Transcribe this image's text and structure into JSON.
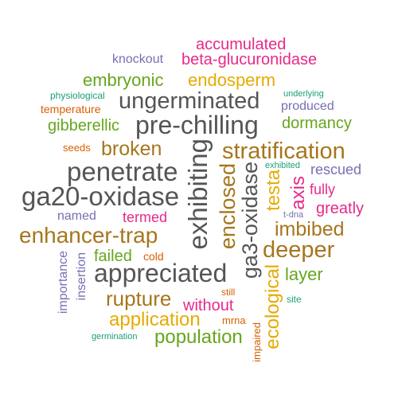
{
  "words": [
    {
      "text": "accumulated",
      "color": "#e7298a"
    },
    {
      "text": "knockout",
      "color": "#7570b3"
    },
    {
      "text": "beta-glucuronidase",
      "color": "#e7298a"
    },
    {
      "text": "embryonic",
      "color": "#66a61e"
    },
    {
      "text": "endosperm",
      "color": "#e6ab02"
    },
    {
      "text": "physiological",
      "color": "#1b9e77"
    },
    {
      "text": "underlying",
      "color": "#1b9e77"
    },
    {
      "text": "temperature",
      "color": "#d95f02"
    },
    {
      "text": "ungerminated",
      "color": "#555555"
    },
    {
      "text": "produced",
      "color": "#7570b3"
    },
    {
      "text": "gibberellic",
      "color": "#66a61e"
    },
    {
      "text": "pre-chilling",
      "color": "#555555"
    },
    {
      "text": "dormancy",
      "color": "#66a61e"
    },
    {
      "text": "seeds",
      "color": "#d95f02"
    },
    {
      "text": "broken",
      "color": "#a6761d"
    },
    {
      "text": "stratification",
      "color": "#a6761d"
    },
    {
      "text": "exhibited",
      "color": "#1b9e77"
    },
    {
      "text": "rescued",
      "color": "#7570b3"
    },
    {
      "text": "penetrate",
      "color": "#555555"
    },
    {
      "text": "fully",
      "color": "#e7298a"
    },
    {
      "text": "ga20-oxidase",
      "color": "#555555"
    },
    {
      "text": "t-dna",
      "color": "#7570b3"
    },
    {
      "text": "greatly",
      "color": "#e7298a"
    },
    {
      "text": "named",
      "color": "#7570b3"
    },
    {
      "text": "termed",
      "color": "#e7298a"
    },
    {
      "text": "enhancer-trap",
      "color": "#a6761d"
    },
    {
      "text": "imbibed",
      "color": "#a6761d"
    },
    {
      "text": "failed",
      "color": "#66a61e"
    },
    {
      "text": "cold",
      "color": "#d95f02"
    },
    {
      "text": "deeper",
      "color": "#a6761d"
    },
    {
      "text": "appreciated",
      "color": "#555555"
    },
    {
      "text": "layer",
      "color": "#66a61e"
    },
    {
      "text": "still",
      "color": "#d95f02"
    },
    {
      "text": "rupture",
      "color": "#a6761d"
    },
    {
      "text": "without",
      "color": "#e7298a"
    },
    {
      "text": "site",
      "color": "#1b9e77"
    },
    {
      "text": "application",
      "color": "#e6ab02"
    },
    {
      "text": "mrna",
      "color": "#d95f02"
    },
    {
      "text": "germination",
      "color": "#1b9e77"
    },
    {
      "text": "population",
      "color": "#66a61e"
    },
    {
      "text": "exhibiting",
      "color": "#555555"
    },
    {
      "text": "enclosed",
      "color": "#a6761d"
    },
    {
      "text": "ga3-oxidase",
      "color": "#555555"
    },
    {
      "text": "testa",
      "color": "#e6ab02"
    },
    {
      "text": "axis",
      "color": "#e7298a"
    },
    {
      "text": "importance",
      "color": "#7570b3"
    },
    {
      "text": "insertion",
      "color": "#7570b3"
    },
    {
      "text": "ecological",
      "color": "#e6ab02"
    },
    {
      "text": "impaired",
      "color": "#d95f02"
    }
  ]
}
